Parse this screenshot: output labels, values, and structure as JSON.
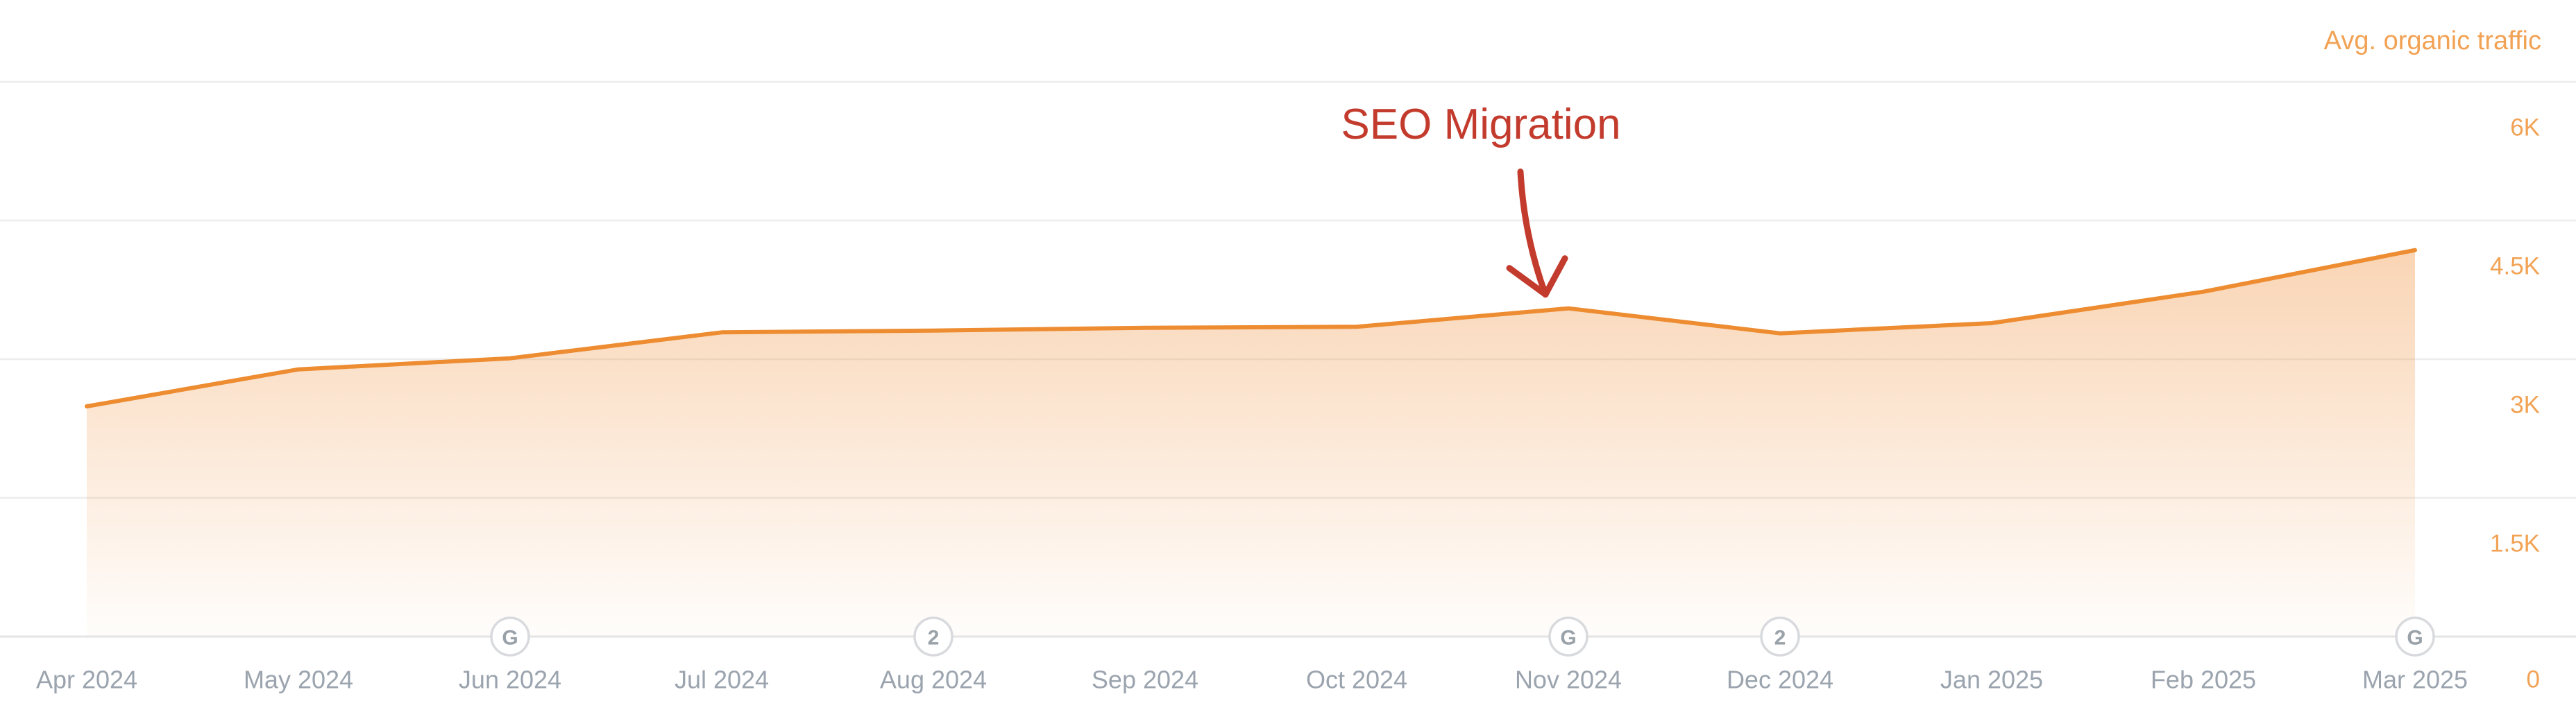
{
  "header": {
    "series_label": "Avg. organic traffic"
  },
  "annotation": {
    "label": "SEO Migration",
    "target_month": "Nov 2024"
  },
  "chart_data": {
    "type": "area",
    "title": "",
    "xlabel": "",
    "ylabel": "",
    "x": [
      "Apr 2024",
      "May 2024",
      "Jun 2024",
      "Jul 2024",
      "Aug 2024",
      "Sep 2024",
      "Oct 2024",
      "Nov 2024",
      "Dec 2024",
      "Jan 2025",
      "Feb 2025",
      "Mar 2025"
    ],
    "series": [
      {
        "name": "Avg. organic traffic",
        "values": [
          2490,
          2890,
          3010,
          3290,
          3310,
          3340,
          3350,
          3550,
          3280,
          3390,
          3730,
          4180
        ]
      }
    ],
    "ylim": [
      0,
      6000
    ],
    "yticks": [
      {
        "value": 6000,
        "label": "6K"
      },
      {
        "value": 4500,
        "label": "4.5K"
      },
      {
        "value": 3000,
        "label": "3K"
      },
      {
        "value": 1500,
        "label": "1.5K"
      },
      {
        "value": 0,
        "label": "0"
      }
    ],
    "grid": "horizontal",
    "legend_position": "top-right",
    "axis_markers": [
      {
        "month": "Jun 2024",
        "glyph": "G"
      },
      {
        "month": "Aug 2024",
        "glyph": "2"
      },
      {
        "month": "Nov 2024",
        "glyph": "G"
      },
      {
        "month": "Dec 2024",
        "glyph": "2"
      },
      {
        "month": "Mar 2025",
        "glyph": "G"
      }
    ],
    "annotation": {
      "text": "SEO Migration",
      "target_month": "Nov 2024",
      "arrow": "down-to-peak"
    }
  },
  "colors": {
    "background": "#ffffff",
    "line": "#ed8c31",
    "area_top": "rgba(240,144,60,0.38)",
    "area_bottom": "rgba(240,144,60,0.02)",
    "grid": "#ededee",
    "axis": "#e4e5e7",
    "y_label": "#f2a254",
    "x_label": "#9ba4ae",
    "marker_border": "#d8dadd",
    "marker_fill": "#ffffff",
    "marker_text": "#99a1a9",
    "annotation_red": "#c33b2d"
  }
}
